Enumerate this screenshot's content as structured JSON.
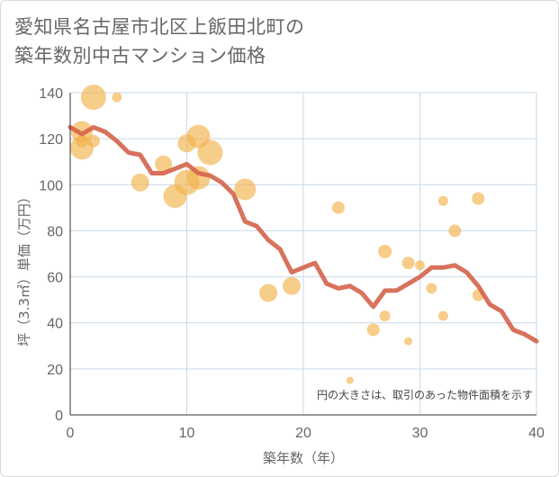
{
  "title_lines": [
    "愛知県名古屋市北区上飯田北町の",
    "築年数別中古マンション価格"
  ],
  "chart_data": {
    "type": "scatter",
    "title": "愛知県名古屋市北区上飯田北町の築年数別中古マンション価格",
    "xlabel": "築年数（年）",
    "ylabel": "坪（3.3㎡）単価（万円）",
    "xlim": [
      0,
      40
    ],
    "ylim": [
      0,
      140
    ],
    "xticks": [
      0,
      10,
      20,
      30,
      40
    ],
    "yticks": [
      0,
      20,
      40,
      60,
      80,
      100,
      120,
      140
    ],
    "grid": true,
    "annotation": "円の大きさは、取引のあった物件面積を示す",
    "colors": {
      "bubble": "#f2b24c",
      "line": "#d4634a",
      "grid": "#c9d9ea",
      "axis": "#333333"
    },
    "series": [
      {
        "kind": "bubble",
        "points": [
          {
            "x": 1,
            "y": 123,
            "size": 24
          },
          {
            "x": 1,
            "y": 116,
            "size": 26
          },
          {
            "x": 1,
            "y": 119,
            "size": 14
          },
          {
            "x": 2,
            "y": 138,
            "size": 28
          },
          {
            "x": 2,
            "y": 119,
            "size": 14
          },
          {
            "x": 4,
            "y": 138,
            "size": 11
          },
          {
            "x": 6,
            "y": 101,
            "size": 20
          },
          {
            "x": 8,
            "y": 109,
            "size": 19
          },
          {
            "x": 9,
            "y": 95,
            "size": 26
          },
          {
            "x": 10,
            "y": 118,
            "size": 20
          },
          {
            "x": 10,
            "y": 101,
            "size": 28
          },
          {
            "x": 11,
            "y": 121,
            "size": 26
          },
          {
            "x": 11,
            "y": 103,
            "size": 26
          },
          {
            "x": 12,
            "y": 114,
            "size": 28
          },
          {
            "x": 15,
            "y": 98,
            "size": 24
          },
          {
            "x": 17,
            "y": 53,
            "size": 20
          },
          {
            "x": 19,
            "y": 56,
            "size": 20
          },
          {
            "x": 23,
            "y": 90,
            "size": 14
          },
          {
            "x": 24,
            "y": 15,
            "size": 8
          },
          {
            "x": 26,
            "y": 37,
            "size": 14
          },
          {
            "x": 27,
            "y": 71,
            "size": 15
          },
          {
            "x": 27,
            "y": 43,
            "size": 12
          },
          {
            "x": 29,
            "y": 66,
            "size": 14
          },
          {
            "x": 29,
            "y": 32,
            "size": 9
          },
          {
            "x": 30,
            "y": 65,
            "size": 11
          },
          {
            "x": 31,
            "y": 55,
            "size": 12
          },
          {
            "x": 32,
            "y": 93,
            "size": 11
          },
          {
            "x": 32,
            "y": 43,
            "size": 11
          },
          {
            "x": 33,
            "y": 80,
            "size": 14
          },
          {
            "x": 35,
            "y": 94,
            "size": 14
          },
          {
            "x": 35,
            "y": 52,
            "size": 13
          }
        ]
      },
      {
        "kind": "line",
        "x": [
          0,
          1,
          2,
          3,
          4,
          5,
          6,
          7,
          8,
          9,
          10,
          11,
          12,
          13,
          14,
          15,
          16,
          17,
          18,
          19,
          20,
          21,
          22,
          23,
          24,
          25,
          26,
          27,
          28,
          29,
          30,
          31,
          32,
          33,
          34,
          35,
          36,
          37,
          38,
          39,
          40
        ],
        "y": [
          125,
          122,
          125,
          123,
          119,
          114,
          113,
          105,
          105,
          107,
          109,
          105,
          104,
          101,
          96,
          84,
          82,
          76,
          72,
          62,
          64,
          66,
          57,
          55,
          56,
          53,
          47,
          54,
          54,
          57,
          60,
          64,
          64,
          65,
          62,
          56,
          48,
          45,
          37,
          35,
          32
        ]
      }
    ]
  }
}
